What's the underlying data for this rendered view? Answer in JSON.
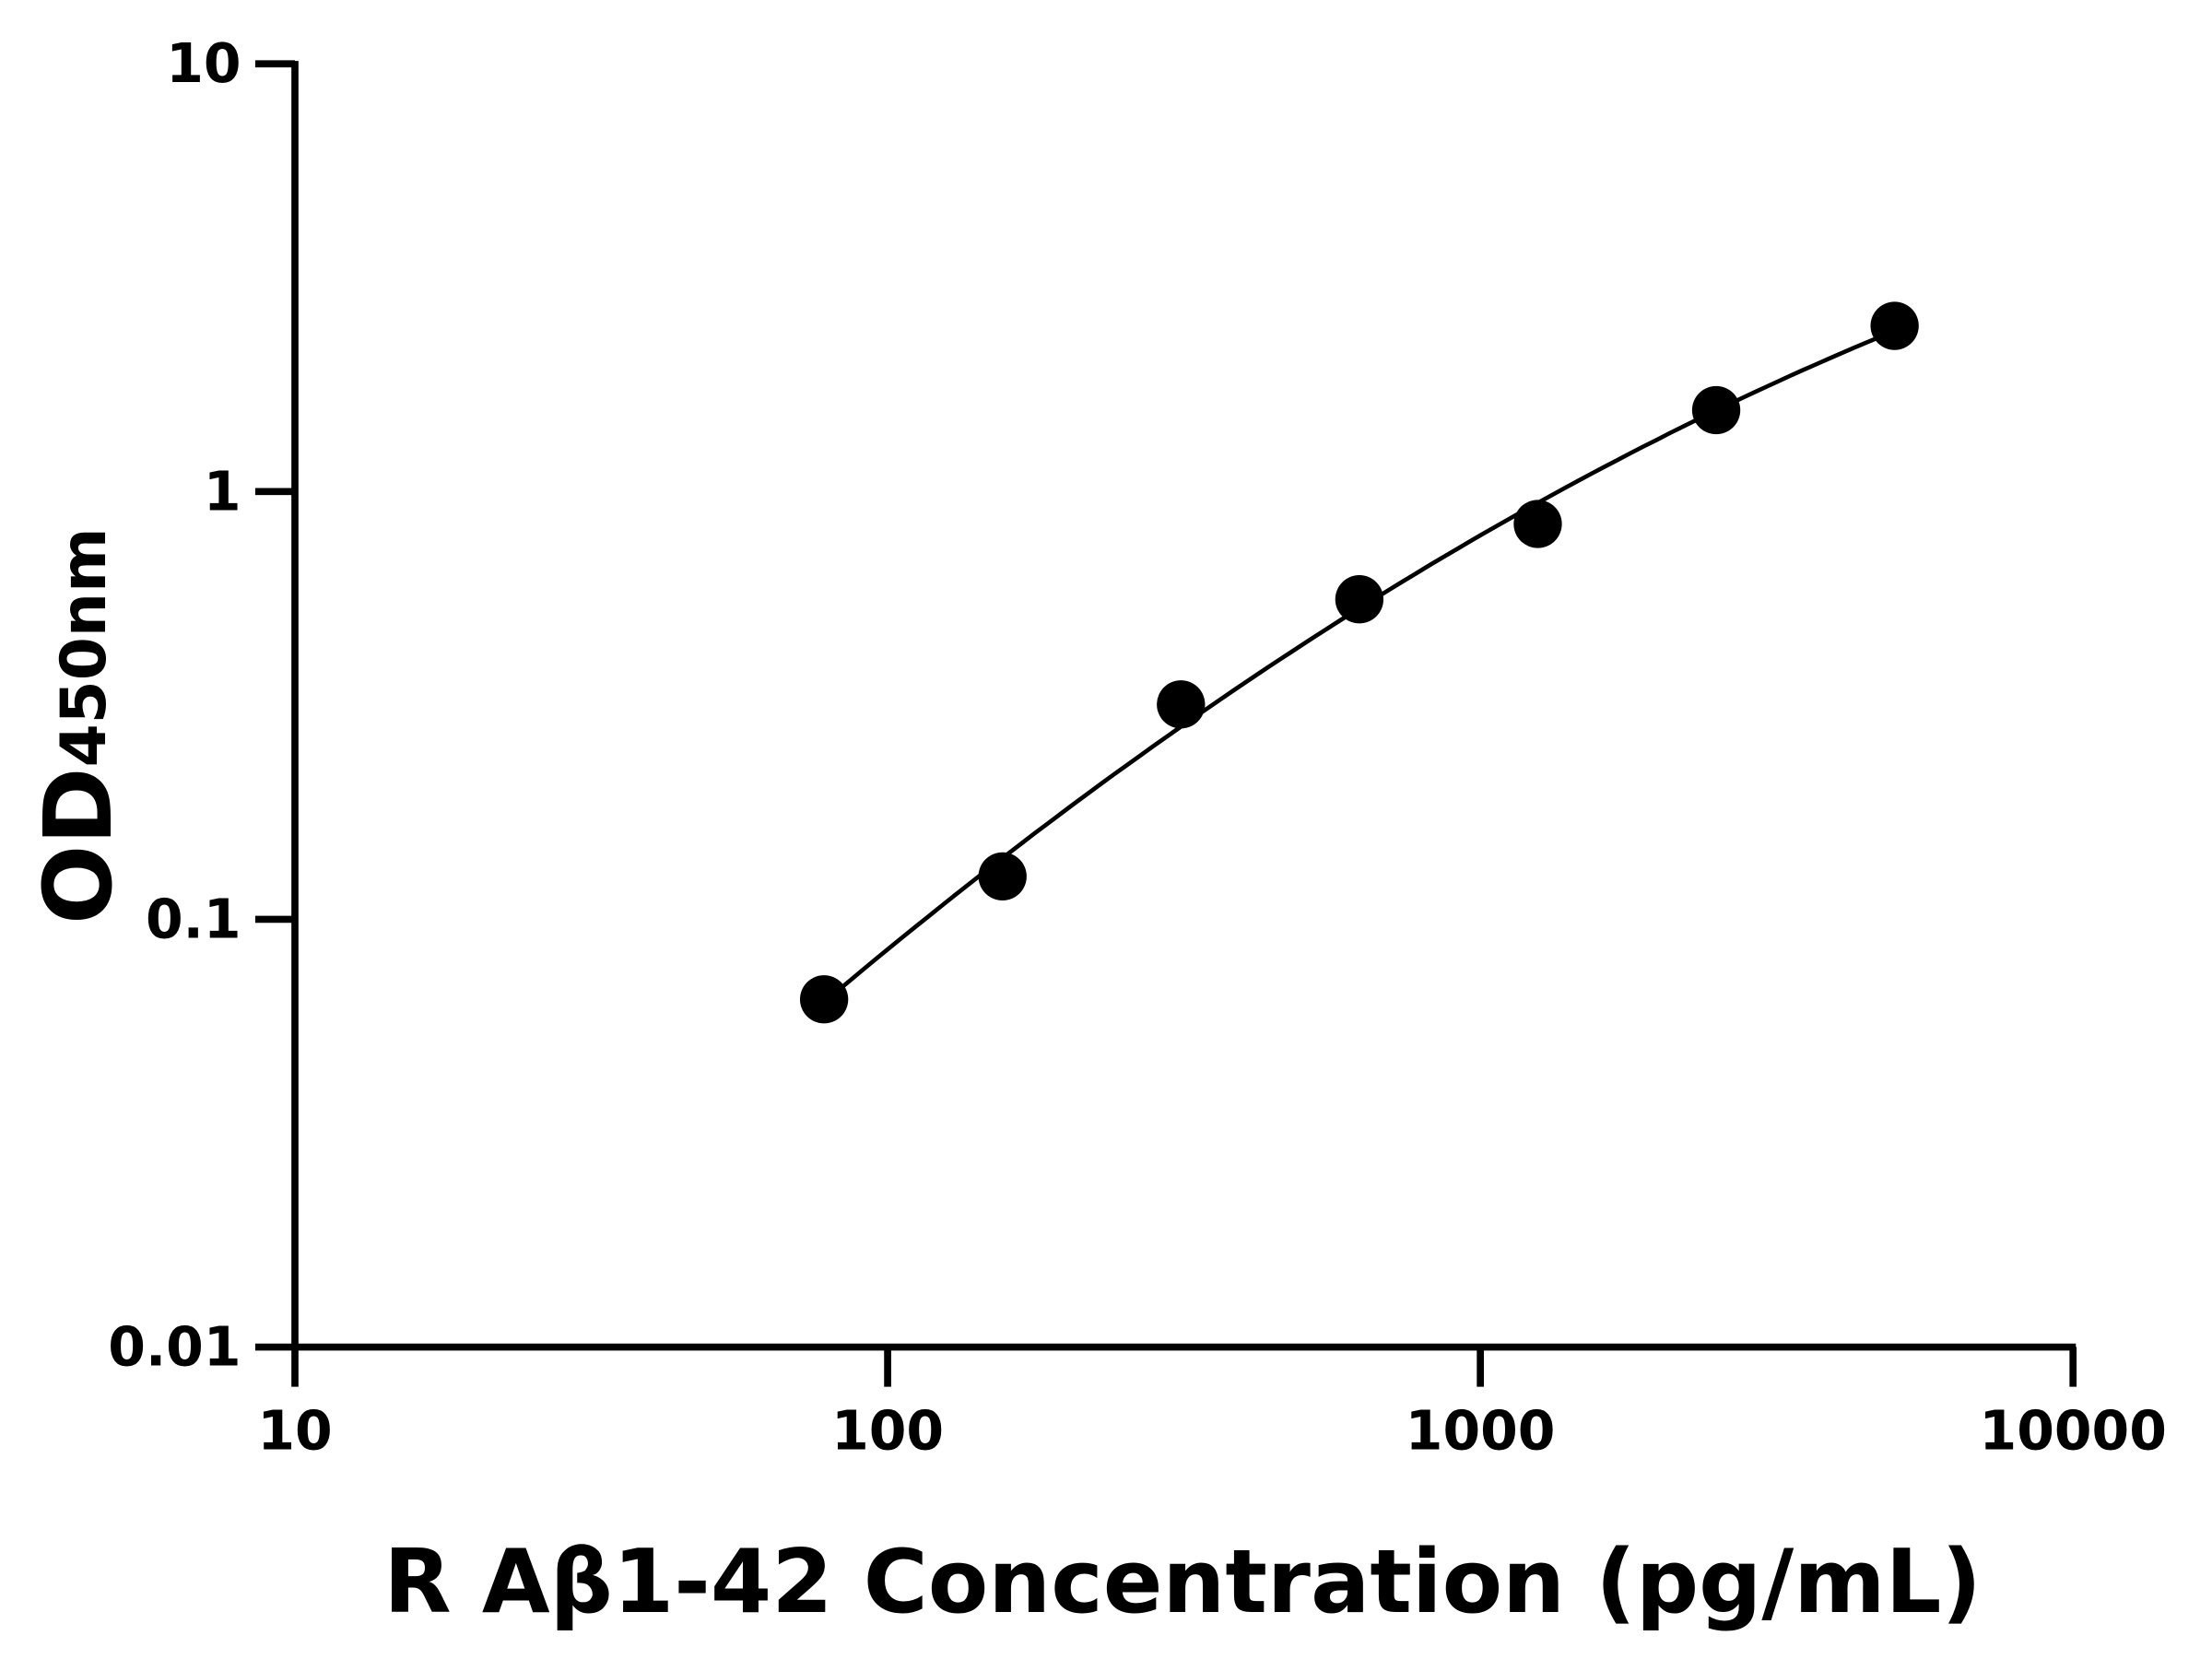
{
  "chart_data": {
    "type": "scatter",
    "title": "",
    "xlabel": "R Aβ1-42 Concentration (pg/mL)",
    "ylabel": {
      "main": "OD",
      "subscript": "450nm"
    },
    "x_scale": "log",
    "y_scale": "log",
    "xlim": [
      10,
      10000
    ],
    "ylim": [
      0.01,
      10
    ],
    "x_ticks": [
      "10",
      "100",
      "1000",
      "10000"
    ],
    "y_ticks": [
      "0.01",
      "0.1",
      "1",
      "10"
    ],
    "grid": false,
    "legend": "none",
    "series": [
      {
        "x": [
          78.125,
          156.25,
          312.5,
          625,
          1250,
          2500,
          5000
        ],
        "y": [
          0.065,
          0.126,
          0.318,
          0.56,
          0.84,
          1.55,
          2.44
        ],
        "marker": "circle",
        "fit_line": true,
        "color": "#000000"
      }
    ]
  }
}
